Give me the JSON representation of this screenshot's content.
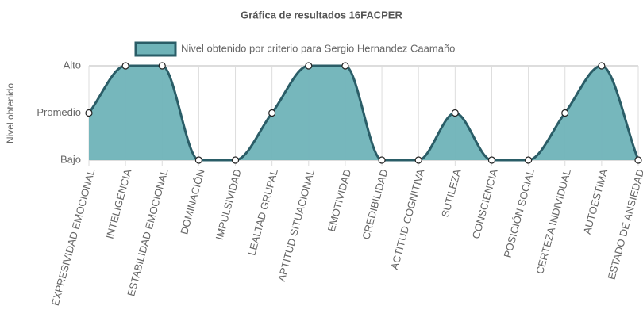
{
  "chart_data": {
    "type": "line",
    "title": "Gráfica de resultados 16FACPER",
    "ylabel": "Nivel obtenido",
    "categories": [
      "EXPRESIVIDAD EMOCIONAL",
      "INTELIGENCIA",
      "ESTABILIDAD EMOCIONAL",
      "DOMINACIÓN",
      "IMPULSIVIDAD",
      "LEALTAD GRUPAL",
      "APTITUD SITUACIONAL",
      "EMOTIVIDAD",
      "CREDIBILIDAD",
      "ACTITUD COGNITIVA",
      "SUTILEZA",
      "CONSCIENCIA",
      "POSICIÓN SOCIAL",
      "CERTEZA INDIVIDUAL",
      "AUTOESTIMA",
      "ESTADO DE ANSIEDAD"
    ],
    "series": [
      {
        "name": "Nivel obtenido por criterio para Sergio Hernandez Caamaño",
        "color": "#2a5d67",
        "fill": "#6fb3b8",
        "values": [
          2,
          3,
          3,
          1,
          1,
          2,
          3,
          3,
          1,
          1,
          2,
          1,
          1,
          2,
          3,
          1
        ]
      }
    ],
    "ylim": [
      1,
      3
    ],
    "yticks": [
      {
        "value": 1,
        "label": "Bajo"
      },
      {
        "value": 2,
        "label": "Promedio"
      },
      {
        "value": 3,
        "label": "Alto"
      }
    ],
    "grid": true,
    "legend": "top"
  }
}
